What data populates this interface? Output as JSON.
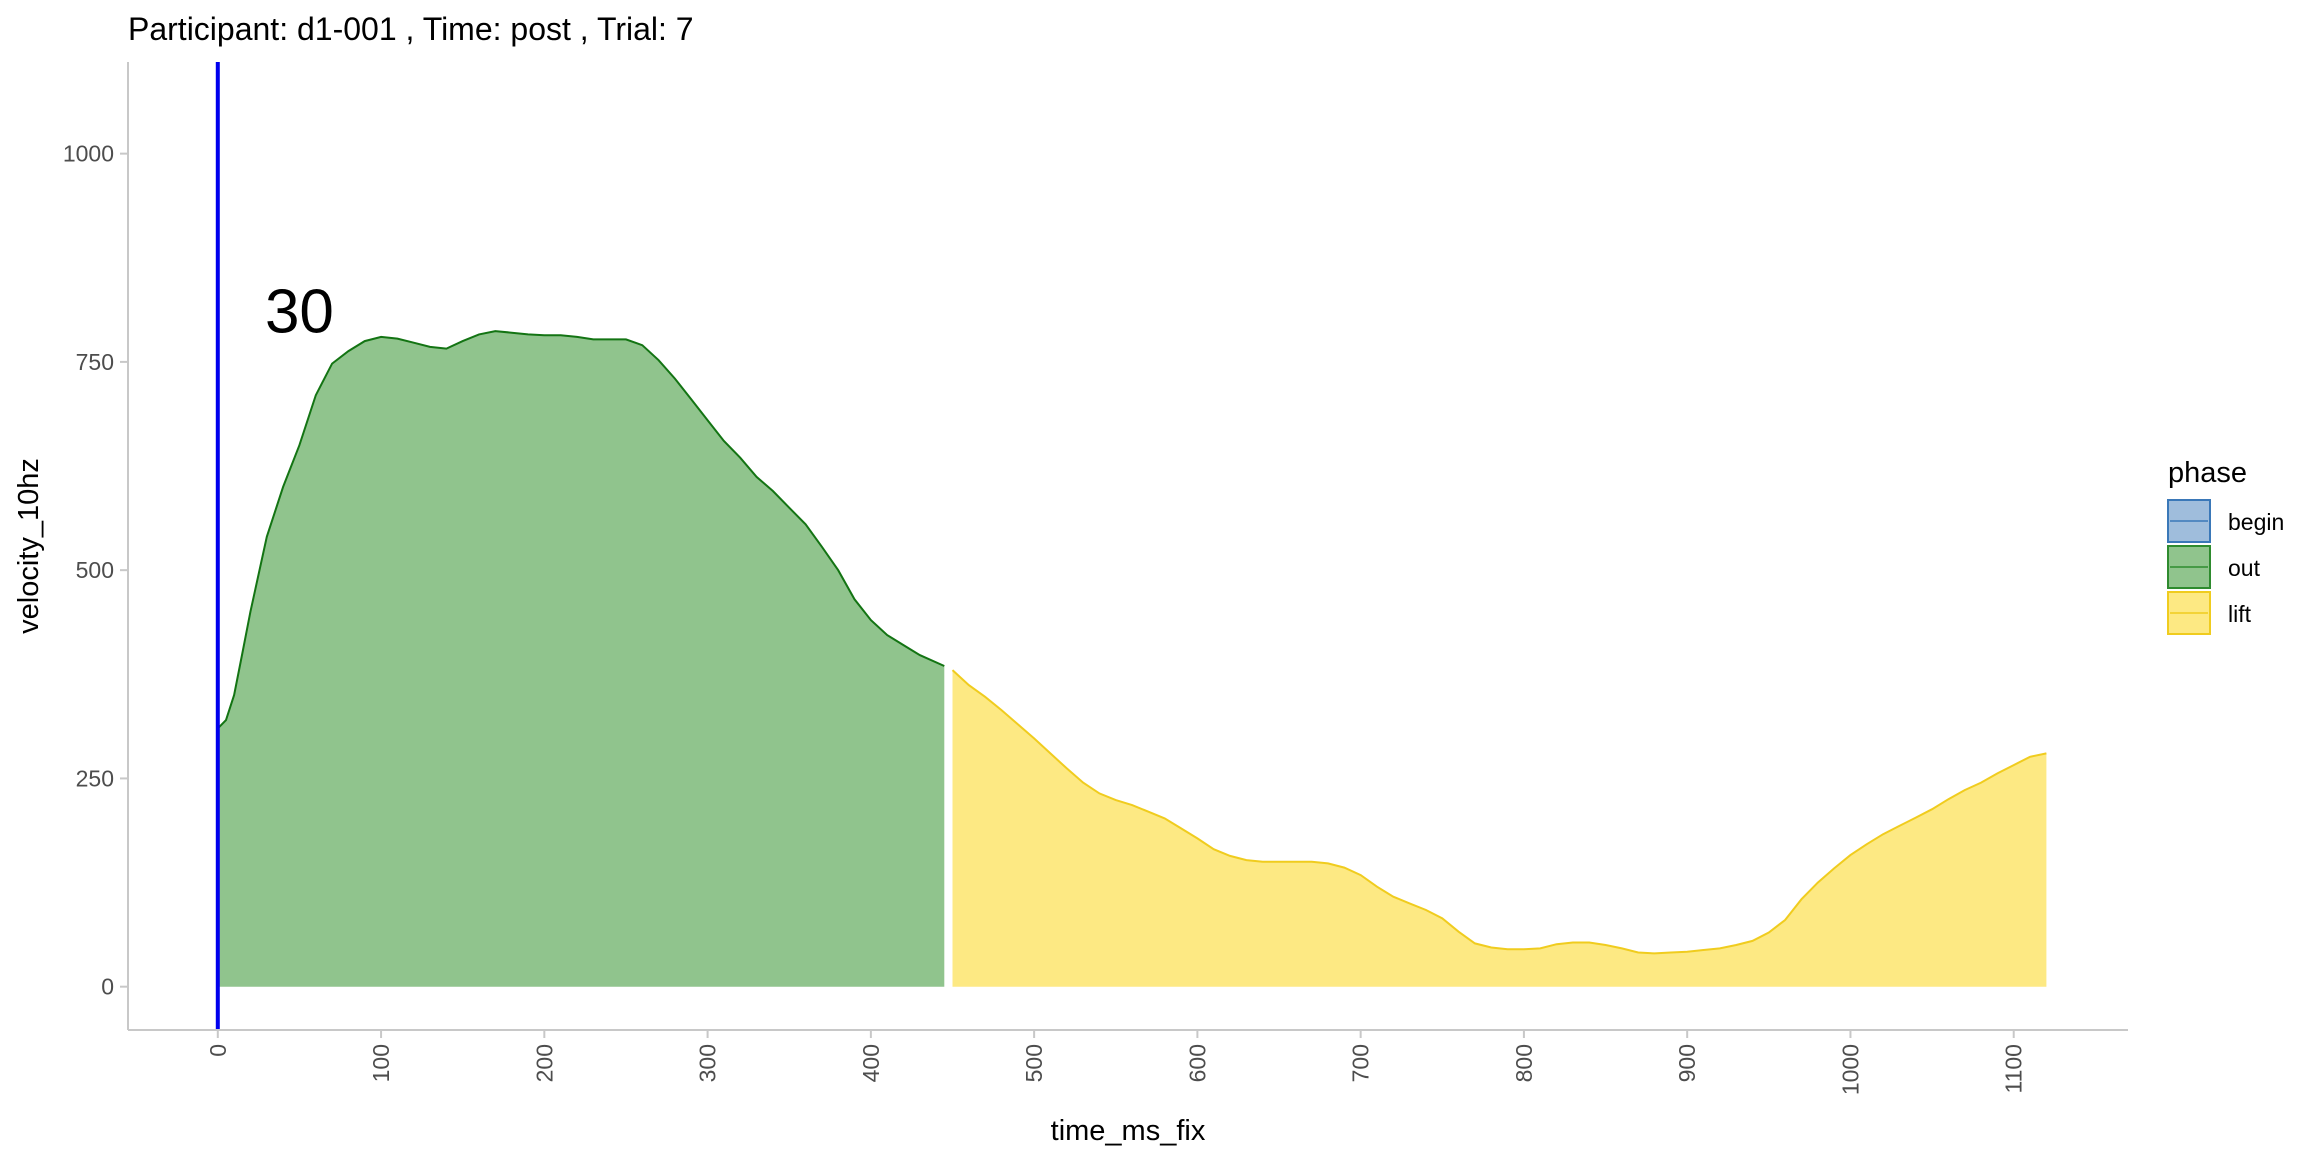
{
  "chart_data": {
    "type": "area",
    "title": "Participant:  d1-001 , Time: post , Trial:  7",
    "xlabel": "time_ms_fix",
    "ylabel": "velocity_10hz",
    "xlim": [
      -55,
      1170
    ],
    "ylim": [
      -52,
      1110
    ],
    "x_ticks": [
      0,
      100,
      200,
      300,
      400,
      500,
      600,
      700,
      800,
      900,
      1000,
      1100
    ],
    "y_ticks": [
      0,
      250,
      500,
      750,
      1000
    ],
    "x_tick_orientation": "vertical",
    "grid": false,
    "vline": {
      "x": 0,
      "color": "#0000ee"
    },
    "annotation": {
      "text": "30",
      "x": 50,
      "y": 785
    },
    "legend": {
      "title": "phase",
      "placement": "right",
      "entries": [
        {
          "label": "begin",
          "fill": "#9fbddc",
          "line": "#3a78b8"
        },
        {
          "label": "out",
          "fill": "#90c48d",
          "line": "#2e8b2e"
        },
        {
          "label": "lift",
          "fill": "#fde983",
          "line": "#f0cc1e"
        }
      ]
    },
    "series": [
      {
        "name": "out",
        "fill": "#90c48d",
        "line": "#137413",
        "x": [
          0,
          5,
          10,
          15,
          20,
          30,
          40,
          50,
          60,
          70,
          80,
          90,
          100,
          110,
          120,
          130,
          140,
          150,
          160,
          170,
          180,
          190,
          200,
          210,
          220,
          230,
          240,
          250,
          260,
          270,
          280,
          290,
          300,
          310,
          320,
          330,
          340,
          350,
          360,
          370,
          380,
          390,
          400,
          410,
          420,
          430,
          445
        ],
        "y": [
          310,
          320,
          350,
          400,
          450,
          540,
          600,
          650,
          710,
          748,
          763,
          775,
          780,
          778,
          773,
          768,
          766,
          775,
          783,
          787,
          785,
          783,
          782,
          782,
          780,
          777,
          777,
          777,
          770,
          752,
          730,
          705,
          680,
          655,
          635,
          612,
          595,
          575,
          555,
          528,
          500,
          465,
          440,
          422,
          410,
          398,
          385
        ]
      },
      {
        "name": "lift",
        "fill": "#fde983",
        "line": "#f0cc1e",
        "x": [
          450,
          460,
          470,
          480,
          490,
          500,
          510,
          520,
          530,
          540,
          550,
          560,
          570,
          580,
          590,
          600,
          610,
          620,
          630,
          640,
          650,
          660,
          670,
          680,
          690,
          700,
          710,
          720,
          730,
          740,
          750,
          760,
          770,
          780,
          790,
          800,
          810,
          820,
          830,
          840,
          850,
          860,
          870,
          880,
          890,
          900,
          910,
          920,
          930,
          940,
          950,
          960,
          970,
          980,
          990,
          1000,
          1010,
          1020,
          1030,
          1040,
          1050,
          1060,
          1070,
          1080,
          1090,
          1100,
          1110,
          1120
        ],
        "y": [
          380,
          362,
          348,
          332,
          315,
          298,
          280,
          262,
          245,
          232,
          224,
          218,
          210,
          202,
          190,
          178,
          165,
          157,
          152,
          150,
          150,
          150,
          150,
          148,
          143,
          134,
          120,
          108,
          100,
          92,
          82,
          66,
          52,
          47,
          45,
          45,
          46,
          51,
          53,
          53,
          50,
          46,
          41,
          40,
          41,
          42,
          44,
          46,
          50,
          55,
          65,
          80,
          105,
          125,
          142,
          158,
          171,
          183,
          193,
          203,
          213,
          225,
          236,
          245,
          256,
          266,
          276,
          280
        ]
      }
    ]
  }
}
